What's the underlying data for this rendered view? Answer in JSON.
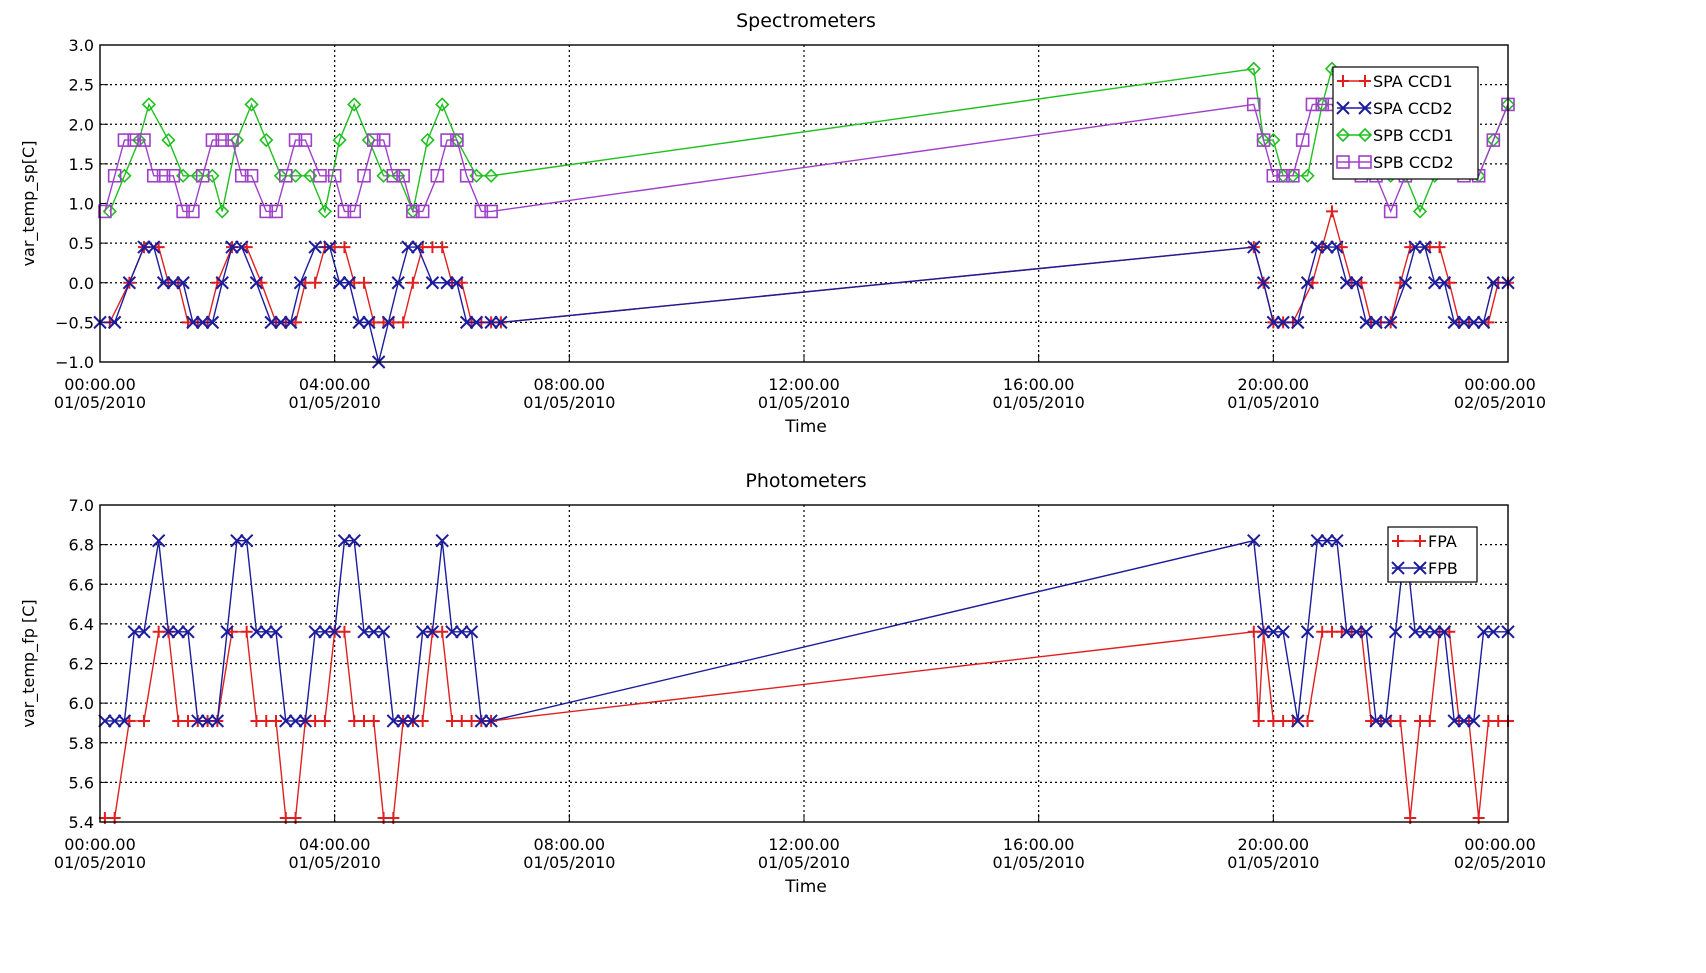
{
  "chart_data": [
    {
      "type": "line",
      "title": "Spectrometers",
      "xlabel": "Time",
      "ylabel": "var_temp_sp[C]",
      "xlim": [
        "01/05/2010 00:00",
        "02/05/2010 00:00"
      ],
      "ylim": [
        -1.0,
        3.0
      ],
      "yticks": [
        "3.0",
        "2.5",
        "2.0",
        "1.5",
        "1.0",
        "0.5",
        "0.0",
        "−0.5",
        "−1.0"
      ],
      "xticks": [
        {
          "time": "00:00.00",
          "date": "01/05/2010"
        },
        {
          "time": "04:00.00",
          "date": "01/05/2010"
        },
        {
          "time": "08:00.00",
          "date": "01/05/2010"
        },
        {
          "time": "12:00.00",
          "date": "01/05/2010"
        },
        {
          "time": "16:00.00",
          "date": "01/05/2010"
        },
        {
          "time": "20:00.00",
          "date": "01/05/2010"
        },
        {
          "time": "00:00.00",
          "date": "02/05/2010"
        }
      ],
      "grid": true,
      "legend_position": "top-right",
      "series": [
        {
          "name": "SPA CCD1",
          "color": "#e02020",
          "marker": "plus",
          "x": [
            "00:10",
            "00:30",
            "00:45",
            "01:00",
            "01:10",
            "01:20",
            "01:30",
            "01:40",
            "01:50",
            "02:00",
            "02:15",
            "02:30",
            "02:45",
            "03:00",
            "03:10",
            "03:20",
            "03:30",
            "03:40",
            "03:50",
            "04:00",
            "04:10",
            "04:20",
            "04:30",
            "04:40",
            "04:50",
            "05:00",
            "05:10",
            "05:20",
            "05:30",
            "05:40",
            "05:50",
            "06:00",
            "06:10",
            "06:20",
            "06:30",
            "06:40",
            "06:50",
            "19:40",
            "19:50",
            "20:00",
            "20:10",
            "20:20",
            "20:40",
            "20:50",
            "21:00",
            "21:10",
            "21:20",
            "21:30",
            "21:40",
            "21:50",
            "22:00",
            "22:10",
            "22:20",
            "22:40",
            "22:50",
            "23:00",
            "23:10",
            "23:20",
            "23:40",
            "23:50",
            "24:00"
          ],
          "y": [
            -0.5,
            0.0,
            0.45,
            0.45,
            0.0,
            0.0,
            -0.5,
            -0.5,
            -0.5,
            0.0,
            0.45,
            0.45,
            0.0,
            -0.5,
            -0.5,
            -0.5,
            0.0,
            0.0,
            0.45,
            0.45,
            0.45,
            0.0,
            0.0,
            -0.5,
            -0.5,
            -0.5,
            -0.5,
            0.0,
            0.45,
            0.45,
            0.45,
            0.0,
            0.0,
            -0.5,
            -0.5,
            -0.5,
            -0.5,
            0.45,
            0.0,
            -0.5,
            -0.5,
            -0.5,
            0.0,
            0.45,
            0.9,
            0.45,
            0.0,
            0.0,
            -0.5,
            -0.5,
            -0.5,
            0.0,
            0.45,
            0.45,
            0.45,
            0.0,
            -0.5,
            -0.5,
            -0.5,
            0.0,
            0.0
          ]
        },
        {
          "name": "SPA CCD2",
          "color": "#1c1c9c",
          "marker": "x",
          "x": [
            "00:00",
            "00:15",
            "00:30",
            "00:45",
            "00:55",
            "01:05",
            "01:15",
            "01:25",
            "01:35",
            "01:45",
            "01:55",
            "02:05",
            "02:15",
            "02:25",
            "02:40",
            "02:55",
            "03:05",
            "03:15",
            "03:25",
            "03:40",
            "03:55",
            "04:05",
            "04:15",
            "04:25",
            "04:35",
            "04:45",
            "04:55",
            "05:05",
            "05:15",
            "05:25",
            "05:40",
            "05:55",
            "06:05",
            "06:15",
            "06:25",
            "06:40",
            "06:50",
            "19:40",
            "19:50",
            "20:00",
            "20:10",
            "20:25",
            "20:35",
            "20:45",
            "20:55",
            "21:05",
            "21:15",
            "21:25",
            "21:35",
            "21:45",
            "22:00",
            "22:15",
            "22:25",
            "22:35",
            "22:45",
            "22:55",
            "23:05",
            "23:15",
            "23:25",
            "23:35",
            "23:45",
            "24:00"
          ],
          "y": [
            -0.5,
            -0.5,
            0.0,
            0.45,
            0.45,
            0.0,
            0.0,
            0.0,
            -0.5,
            -0.5,
            -0.5,
            0.0,
            0.45,
            0.45,
            0.0,
            -0.5,
            -0.5,
            -0.5,
            0.0,
            0.45,
            0.45,
            0.0,
            0.0,
            -0.5,
            -0.5,
            -1.0,
            -0.5,
            0.0,
            0.45,
            0.45,
            0.0,
            0.0,
            0.0,
            -0.5,
            -0.5,
            -0.5,
            -0.5,
            0.45,
            0.0,
            -0.5,
            -0.5,
            -0.5,
            0.0,
            0.45,
            0.45,
            0.45,
            0.0,
            0.0,
            -0.5,
            -0.5,
            -0.5,
            0.0,
            0.45,
            0.45,
            0.0,
            0.0,
            -0.5,
            -0.5,
            -0.5,
            -0.5,
            0.0,
            0.0
          ]
        },
        {
          "name": "SPB CCD1",
          "color": "#20c020",
          "marker": "diamond",
          "x": [
            "00:10",
            "00:25",
            "00:40",
            "00:50",
            "01:10",
            "01:25",
            "01:40",
            "01:55",
            "02:05",
            "02:20",
            "02:35",
            "02:50",
            "03:05",
            "03:20",
            "03:35",
            "03:50",
            "04:05",
            "04:20",
            "04:35",
            "04:50",
            "05:05",
            "05:20",
            "05:35",
            "05:50",
            "06:05",
            "06:25",
            "06:40",
            "19:40",
            "19:50",
            "20:00",
            "20:10",
            "20:20",
            "20:35",
            "20:50",
            "21:00",
            "21:10",
            "21:25",
            "21:45",
            "22:00",
            "22:15",
            "22:30",
            "22:45",
            "23:00",
            "23:15",
            "23:30",
            "23:45",
            "24:00"
          ],
          "y": [
            0.9,
            1.35,
            1.8,
            2.25,
            1.8,
            1.35,
            1.35,
            1.35,
            0.9,
            1.8,
            2.25,
            1.8,
            1.35,
            1.35,
            1.35,
            0.9,
            1.8,
            2.25,
            1.8,
            1.35,
            1.35,
            0.9,
            1.8,
            2.25,
            1.8,
            1.35,
            1.35,
            2.7,
            1.8,
            1.8,
            1.35,
            1.35,
            1.35,
            2.25,
            2.7,
            2.25,
            2.25,
            1.8,
            1.35,
            1.35,
            0.9,
            1.35,
            1.8,
            1.8,
            1.35,
            1.8,
            2.25
          ]
        },
        {
          "name": "SPB CCD2",
          "color": "#a040c8",
          "marker": "square",
          "x": [
            "00:05",
            "00:15",
            "00:25",
            "00:35",
            "00:45",
            "00:55",
            "01:05",
            "01:15",
            "01:25",
            "01:35",
            "01:45",
            "01:55",
            "02:05",
            "02:15",
            "02:25",
            "02:35",
            "02:50",
            "03:00",
            "03:10",
            "03:20",
            "03:30",
            "03:45",
            "04:00",
            "04:10",
            "04:20",
            "04:30",
            "04:40",
            "04:50",
            "05:00",
            "05:10",
            "05:20",
            "05:30",
            "05:45",
            "05:55",
            "06:05",
            "06:15",
            "06:30",
            "06:40",
            "19:40",
            "19:50",
            "20:00",
            "20:10",
            "20:20",
            "20:30",
            "20:40",
            "20:50",
            "21:00",
            "21:15",
            "21:30",
            "21:45",
            "22:00",
            "22:15",
            "22:30",
            "22:45",
            "23:00",
            "23:15",
            "23:30",
            "23:45",
            "24:00"
          ],
          "y": [
            0.9,
            1.35,
            1.8,
            1.8,
            1.8,
            1.35,
            1.35,
            1.35,
            0.9,
            0.9,
            1.35,
            1.8,
            1.8,
            1.8,
            1.35,
            1.35,
            0.9,
            0.9,
            1.35,
            1.8,
            1.8,
            1.35,
            1.35,
            0.9,
            0.9,
            1.35,
            1.8,
            1.8,
            1.35,
            1.35,
            0.9,
            0.9,
            1.35,
            1.8,
            1.8,
            1.35,
            0.9,
            0.9,
            2.25,
            1.8,
            1.35,
            1.35,
            1.35,
            1.8,
            2.25,
            2.25,
            2.25,
            1.8,
            1.35,
            1.35,
            0.9,
            1.35,
            1.8,
            1.8,
            1.8,
            1.35,
            1.35,
            1.8,
            2.25
          ]
        }
      ]
    },
    {
      "type": "line",
      "title": "Photometers",
      "xlabel": "Time",
      "ylabel": "var_temp_fp [C]",
      "xlim": [
        "01/05/2010 00:00",
        "02/05/2010 00:00"
      ],
      "ylim": [
        5.4,
        7.0
      ],
      "yticks": [
        "7.0",
        "6.8",
        "6.6",
        "6.4",
        "6.2",
        "6.0",
        "5.8",
        "5.6",
        "5.4"
      ],
      "xticks": [
        {
          "time": "00:00.00",
          "date": "01/05/2010"
        },
        {
          "time": "04:00.00",
          "date": "01/05/2010"
        },
        {
          "time": "08:00.00",
          "date": "01/05/2010"
        },
        {
          "time": "12:00.00",
          "date": "01/05/2010"
        },
        {
          "time": "16:00.00",
          "date": "01/05/2010"
        },
        {
          "time": "20:00.00",
          "date": "01/05/2010"
        },
        {
          "time": "00:00.00",
          "date": "02/05/2010"
        }
      ],
      "grid": true,
      "legend_position": "top-right",
      "series": [
        {
          "name": "FPA",
          "color": "#e02020",
          "marker": "plus",
          "x": [
            "00:05",
            "00:15",
            "00:30",
            "00:45",
            "01:00",
            "01:10",
            "01:20",
            "01:30",
            "01:40",
            "01:50",
            "02:00",
            "02:15",
            "02:30",
            "02:40",
            "02:50",
            "03:00",
            "03:10",
            "03:20",
            "03:30",
            "03:40",
            "03:50",
            "04:00",
            "04:10",
            "04:20",
            "04:30",
            "04:40",
            "04:50",
            "05:00",
            "05:10",
            "05:20",
            "05:30",
            "05:40",
            "05:50",
            "06:00",
            "06:10",
            "06:20",
            "06:30",
            "06:40",
            "19:40",
            "19:45",
            "19:50",
            "20:00",
            "20:10",
            "20:20",
            "20:35",
            "20:50",
            "21:00",
            "21:10",
            "21:20",
            "21:30",
            "21:40",
            "21:50",
            "22:00",
            "22:10",
            "22:20",
            "22:30",
            "22:40",
            "22:50",
            "23:00",
            "23:10",
            "23:20",
            "23:30",
            "23:40",
            "23:50",
            "24:00"
          ],
          "y": [
            5.42,
            5.42,
            5.91,
            5.91,
            6.36,
            6.36,
            5.91,
            5.91,
            5.91,
            5.91,
            5.91,
            6.36,
            6.36,
            5.91,
            5.91,
            5.91,
            5.42,
            5.42,
            5.91,
            5.91,
            5.91,
            6.36,
            6.36,
            5.91,
            5.91,
            5.91,
            5.42,
            5.42,
            5.91,
            5.91,
            5.91,
            6.36,
            6.36,
            5.91,
            5.91,
            5.91,
            5.91,
            5.91,
            6.36,
            5.91,
            6.36,
            5.91,
            5.91,
            5.91,
            5.91,
            6.36,
            6.36,
            6.36,
            6.36,
            6.36,
            5.91,
            5.91,
            5.91,
            5.91,
            5.42,
            5.91,
            5.91,
            6.36,
            6.36,
            5.91,
            5.91,
            5.42,
            5.91,
            5.91,
            5.91
          ]
        },
        {
          "name": "FPB",
          "color": "#1c1c9c",
          "marker": "x",
          "x": [
            "00:05",
            "00:15",
            "00:25",
            "00:35",
            "00:45",
            "01:00",
            "01:10",
            "01:20",
            "01:30",
            "01:40",
            "01:50",
            "02:00",
            "02:10",
            "02:20",
            "02:30",
            "02:40",
            "02:50",
            "03:00",
            "03:10",
            "03:20",
            "03:30",
            "03:40",
            "03:50",
            "04:00",
            "04:10",
            "04:20",
            "04:30",
            "04:40",
            "04:50",
            "05:00",
            "05:10",
            "05:20",
            "05:30",
            "05:40",
            "05:50",
            "06:00",
            "06:10",
            "06:20",
            "06:30",
            "06:40",
            "19:40",
            "19:50",
            "20:00",
            "20:10",
            "20:25",
            "20:35",
            "20:45",
            "20:55",
            "21:05",
            "21:15",
            "21:25",
            "21:35",
            "21:45",
            "21:55",
            "22:05",
            "22:15",
            "22:25",
            "22:35",
            "22:45",
            "22:55",
            "23:05",
            "23:15",
            "23:25",
            "23:35",
            "23:45",
            "24:00"
          ],
          "y": [
            5.91,
            5.91,
            5.91,
            6.36,
            6.36,
            6.82,
            6.36,
            6.36,
            6.36,
            5.91,
            5.91,
            5.91,
            6.36,
            6.82,
            6.82,
            6.36,
            6.36,
            6.36,
            5.91,
            5.91,
            5.91,
            6.36,
            6.36,
            6.36,
            6.82,
            6.82,
            6.36,
            6.36,
            6.36,
            5.91,
            5.91,
            5.91,
            6.36,
            6.36,
            6.82,
            6.36,
            6.36,
            6.36,
            5.91,
            5.91,
            6.82,
            6.36,
            6.36,
            6.36,
            5.91,
            6.36,
            6.82,
            6.82,
            6.82,
            6.36,
            6.36,
            6.36,
            5.91,
            5.91,
            6.36,
            6.82,
            6.36,
            6.36,
            6.36,
            6.36,
            5.91,
            5.91,
            5.91,
            6.36,
            6.36,
            6.36
          ]
        }
      ]
    }
  ]
}
